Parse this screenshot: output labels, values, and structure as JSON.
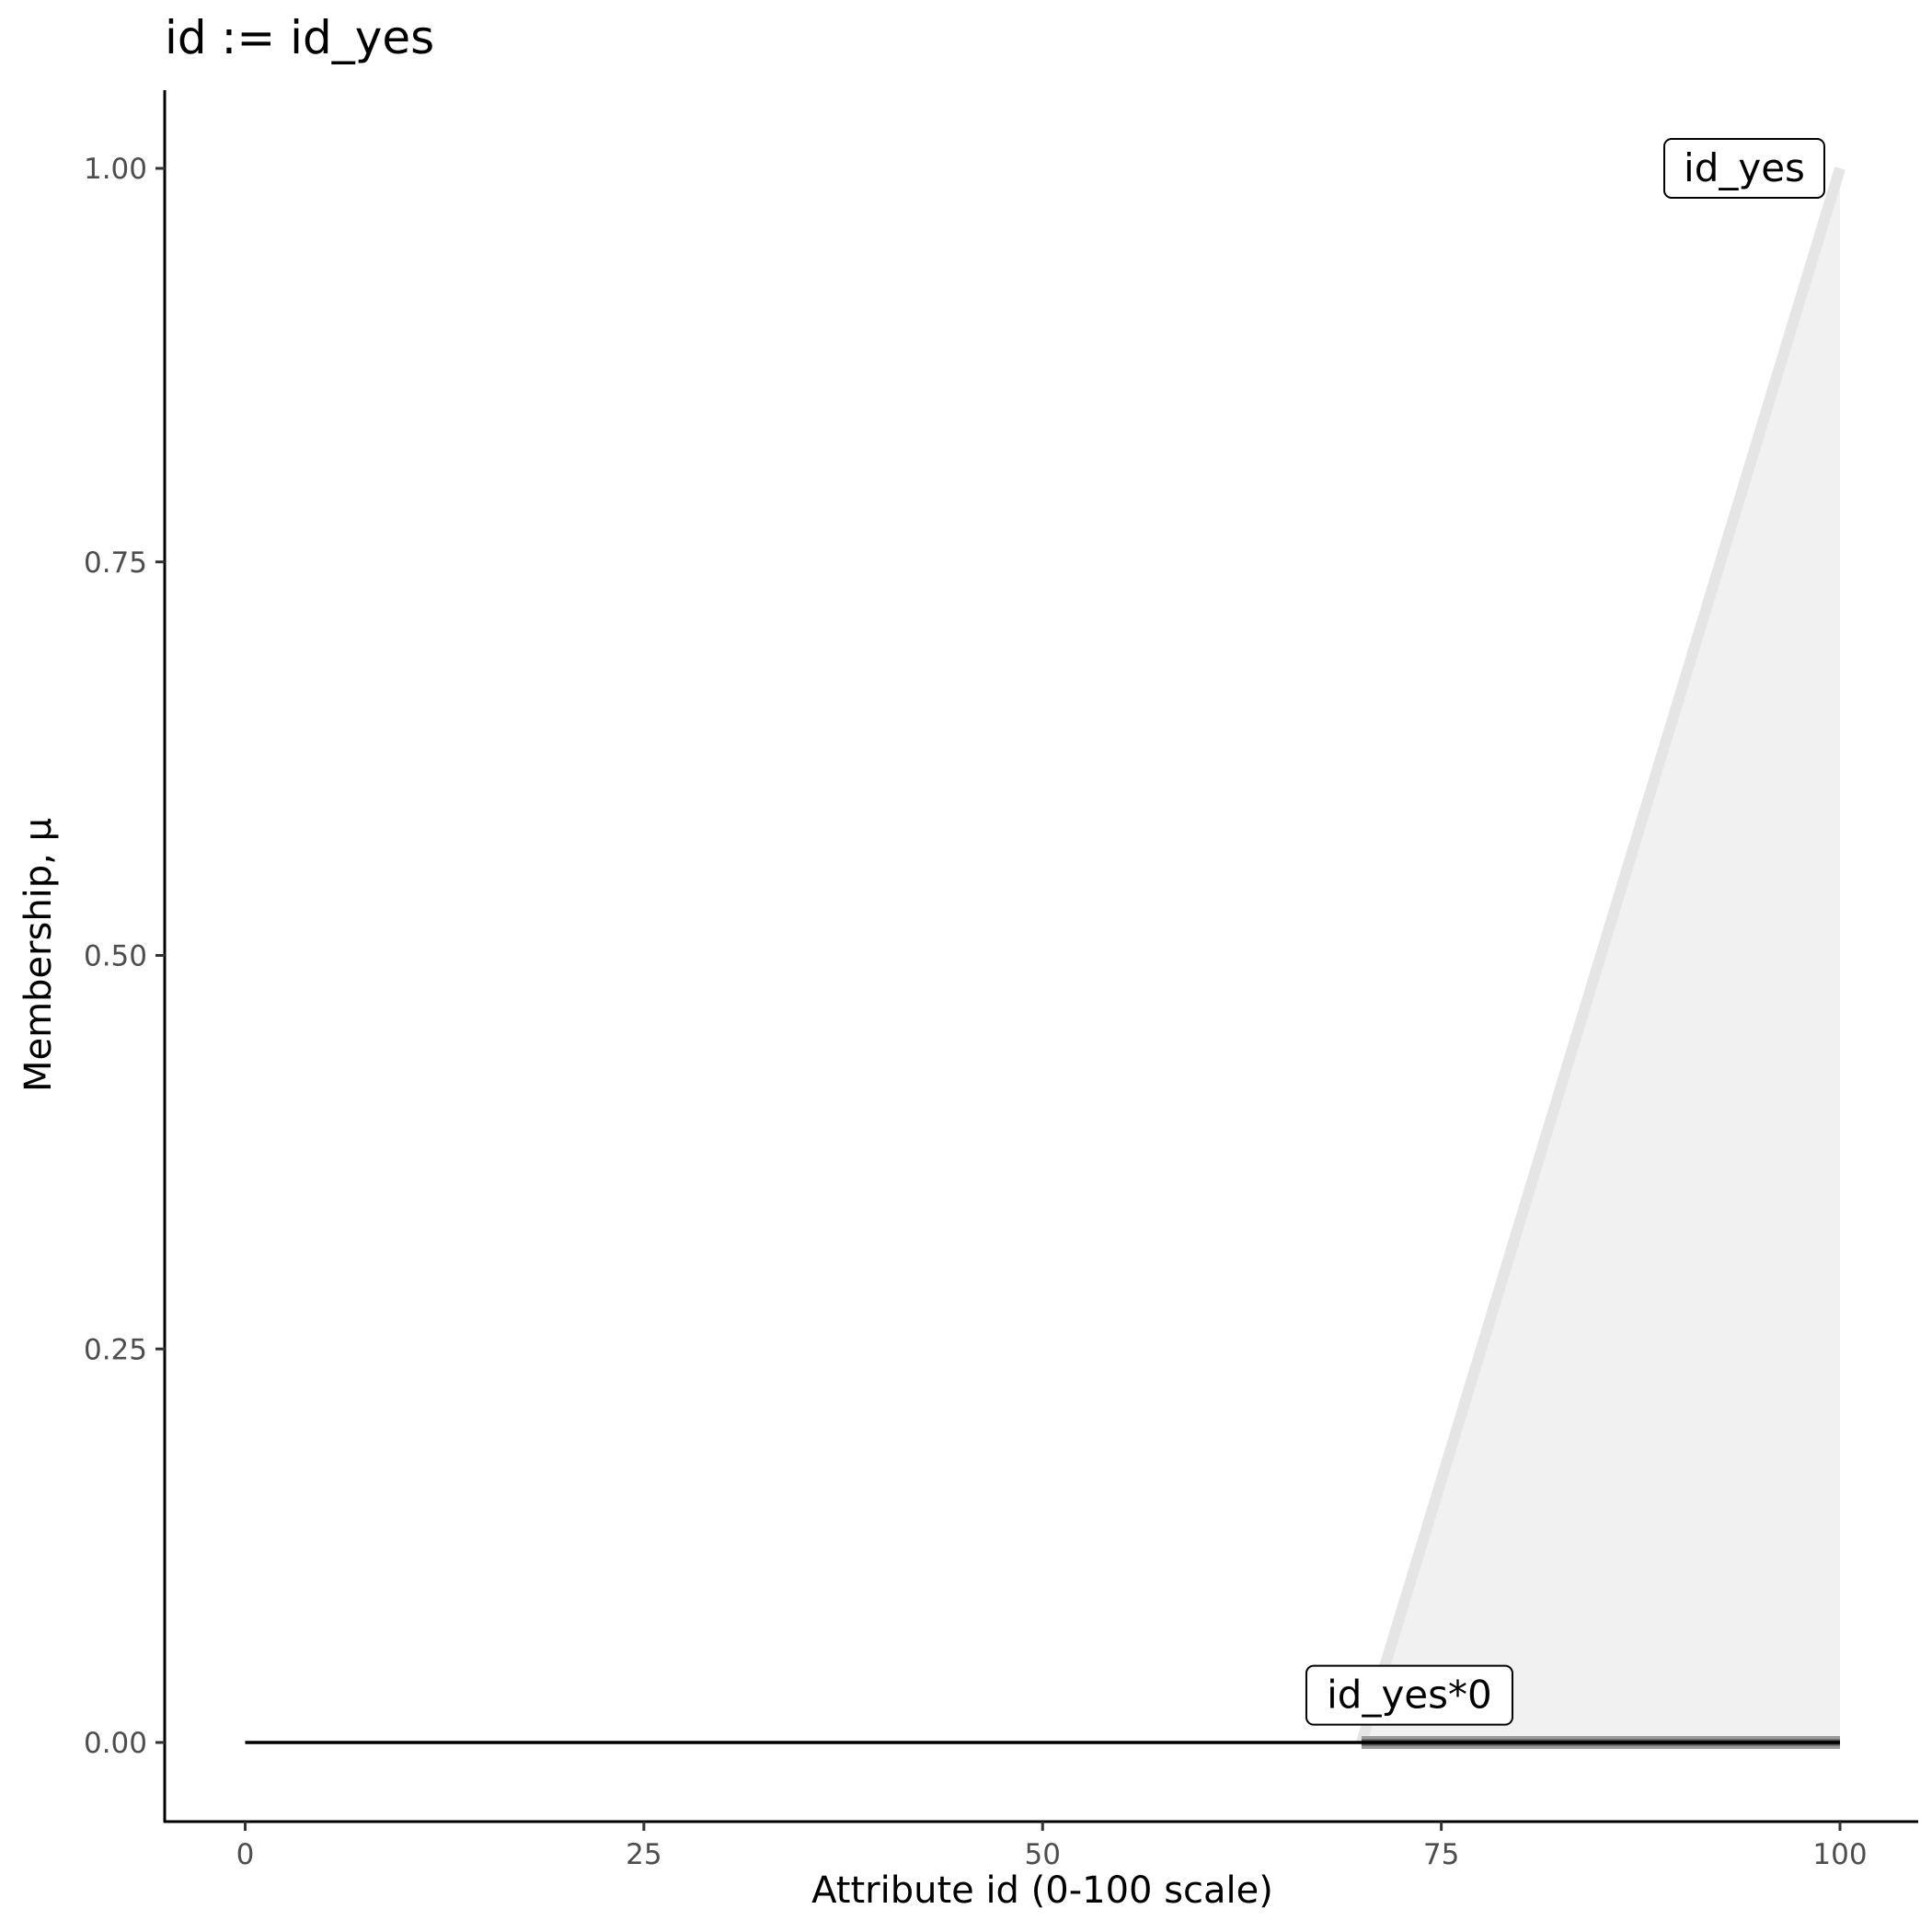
{
  "chart_data": {
    "type": "area",
    "title": "id := id_yes",
    "xlabel": "Attribute id (0-100 scale)",
    "ylabel": "Membership, μ",
    "xlim": [
      -5,
      105
    ],
    "ylim": [
      -0.05,
      1.05
    ],
    "x_ticks": [
      "0",
      "25",
      "50",
      "75",
      "100"
    ],
    "x_tick_values": [
      0,
      25,
      50,
      75,
      100
    ],
    "y_ticks": [
      "0.00",
      "0.25",
      "0.50",
      "0.75",
      "1.00"
    ],
    "y_tick_values": [
      0,
      0.25,
      0.5,
      0.75,
      1.0
    ],
    "grid": false,
    "series": [
      {
        "name": "id_yes",
        "x": [
          70,
          100
        ],
        "y": [
          0,
          1
        ],
        "fill": "#f1f1f1",
        "line_color": "#e5e5e5"
      },
      {
        "name": "id_yes*0",
        "x": [
          70,
          100
        ],
        "y": [
          0,
          0
        ],
        "line_color": "#555555"
      },
      {
        "x": [
          0,
          100
        ],
        "y": [
          0,
          0
        ],
        "line_color": "#000000"
      }
    ],
    "annotations": [
      {
        "text": "id_yes",
        "x": 94,
        "y": 1.0
      },
      {
        "text": "id_yes*0",
        "x": 73,
        "y": 0.03
      }
    ]
  }
}
